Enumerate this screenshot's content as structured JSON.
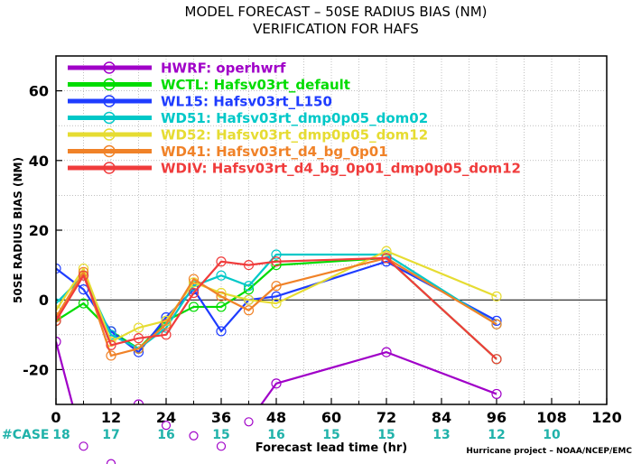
{
  "chart_data": {
    "type": "line",
    "title": "MODEL FORECAST – 50SE RADIUS BIAS (NM)",
    "subtitle": "VERIFICATION FOR HAFS",
    "xlabel": "Forecast lead time (hr)",
    "ylabel": "50SE RADIUS BIAS (NM)",
    "xlim": [
      0,
      120
    ],
    "ylim": [
      -30,
      70
    ],
    "xticks": [
      0,
      12,
      24,
      36,
      48,
      60,
      72,
      84,
      96,
      108,
      120
    ],
    "yticks": [
      -20,
      0,
      20,
      40,
      60
    ],
    "grid": true,
    "legend_position": "top-left",
    "credit": "Hurricane project – NOAA/NCEP/EMC",
    "case_label": "#CASE",
    "cases": [
      {
        "x": 0,
        "n": "18"
      },
      {
        "x": 12,
        "n": "17"
      },
      {
        "x": 24,
        "n": "16"
      },
      {
        "x": 36,
        "n": "15"
      },
      {
        "x": 48,
        "n": "16"
      },
      {
        "x": 60,
        "n": "15"
      },
      {
        "x": 72,
        "n": "15"
      },
      {
        "x": 84,
        "n": "13"
      },
      {
        "x": 96,
        "n": "12"
      },
      {
        "x": 108,
        "n": "10"
      }
    ],
    "series": [
      {
        "name": "HWRF:",
        "desc": "operhwrf",
        "color": "#a000c8",
        "x": [
          0,
          6,
          12,
          18,
          24,
          30,
          36,
          42,
          48,
          72,
          96
        ],
        "y": [
          -12,
          -42,
          -47,
          -30,
          -36,
          -39,
          -42,
          -35,
          -24,
          -15,
          -27
        ]
      },
      {
        "name": "WCTL:",
        "desc": "Hafsv03rt_default",
        "color": "#00dc00",
        "x": [
          0,
          6,
          12,
          18,
          24,
          30,
          36,
          42,
          48,
          72,
          96
        ],
        "y": [
          -6,
          -1,
          -9,
          -14,
          -6,
          -2,
          -2,
          3,
          10,
          12,
          -17
        ]
      },
      {
        "name": "WL15:",
        "desc": "Hafsv03rt_L150",
        "color": "#1e3cff",
        "x": [
          0,
          6,
          12,
          18,
          24,
          30,
          36,
          42,
          48,
          72,
          96
        ],
        "y": [
          9,
          3,
          -9,
          -15,
          -5,
          3,
          -9,
          0,
          1,
          11,
          -6
        ]
      },
      {
        "name": "WD51:",
        "desc": "Hafsv03rt_dmp0p05_dom02",
        "color": "#00c8c8",
        "x": [
          0,
          6,
          12,
          18,
          24,
          30,
          36,
          42,
          48,
          72,
          96
        ],
        "y": [
          -1,
          7,
          -10,
          -14,
          -8,
          4,
          7,
          4,
          13,
          13,
          -7
        ]
      },
      {
        "name": "WD52:",
        "desc": "Hafsv03rt_dmp0p05_dom12",
        "color": "#e6dc32",
        "x": [
          0,
          6,
          12,
          18,
          24,
          30,
          36,
          42,
          48,
          72,
          96
        ],
        "y": [
          -3,
          9,
          -12,
          -8,
          -6,
          5,
          2,
          0,
          -1,
          14,
          1
        ]
      },
      {
        "name": "WD41:",
        "desc": "Hafsv03rt_d4_bg_0p01",
        "color": "#f08228",
        "x": [
          0,
          6,
          12,
          18,
          24,
          30,
          36,
          42,
          48,
          72,
          96
        ],
        "y": [
          -5,
          8,
          -16,
          -14,
          -7,
          6,
          1,
          -3,
          4,
          12,
          -7
        ]
      },
      {
        "name": "WDIV:",
        "desc": "Hafsv03rt_d4_bg_0p01_dmp0p05_dom12",
        "color": "#f03c3c",
        "x": [
          0,
          6,
          12,
          18,
          24,
          30,
          36,
          42,
          48,
          72,
          96
        ],
        "y": [
          -6,
          7,
          -13,
          -11,
          -10,
          2,
          11,
          10,
          11,
          12,
          -17
        ]
      }
    ]
  }
}
